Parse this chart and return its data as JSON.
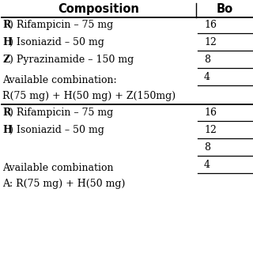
{
  "col1_header": "Composition",
  "col2_header": "Bo",
  "section1_rows": [
    [
      "R",
      ") Rifampicin – 75 mg"
    ],
    [
      "H",
      ") Isoniazid – 50 mg"
    ],
    [
      "Z",
      ") Pyrazinamide – 150 mg"
    ]
  ],
  "section1_col2": [
    "16",
    "12",
    "8",
    "4"
  ],
  "section1_footer1": "Available combination:",
  "section1_footer2": "R(75 mg) + H(50 mg) + Z(150mg)",
  "section2_rows": [
    [
      "R",
      ") Rifampicin – 75 mg"
    ],
    [
      "H",
      ") Isoniazid – 50 mg"
    ]
  ],
  "section2_col2": [
    "16",
    "12",
    "8",
    "4"
  ],
  "section2_footer1": "Available combination",
  "section2_footer2": "A: R(75 mg) + H(50 mg)",
  "bg_color": "#ffffff",
  "text_color": "#000000",
  "line_color": "#000000",
  "font_size": 9.0,
  "header_font_size": 10.5
}
